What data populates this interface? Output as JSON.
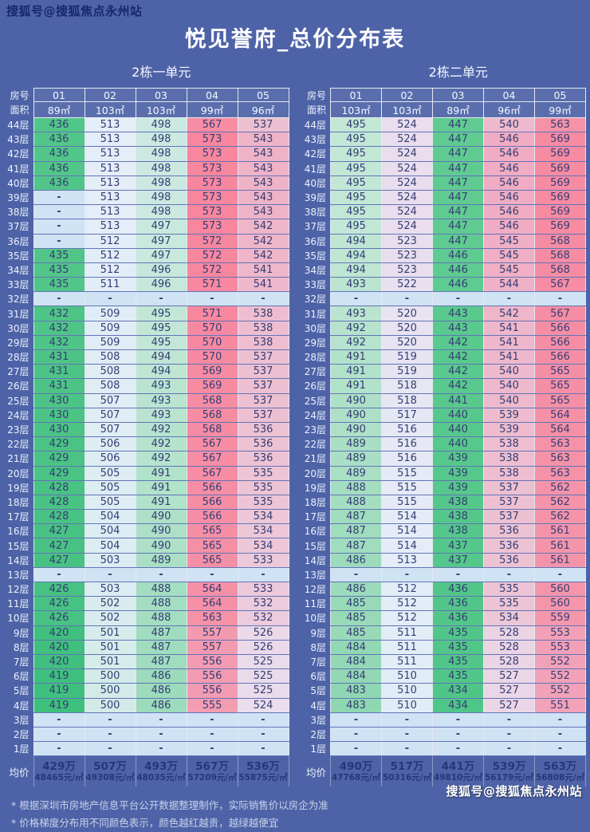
{
  "watermark_top": "搜狐号@搜狐焦点永州站",
  "watermark_bottom": "搜狐号@搜狐焦点永州站",
  "title": "悦见誉府_总价分布表",
  "labels": {
    "room_header": "房号",
    "area_header": "面积",
    "avg_header": "均价",
    "dash_display": "-"
  },
  "footnotes": [
    "* 根据深圳市房地产信息平台公开数据整理制作，实际销售价以房企为准",
    "* 价格梯度分布用不同颜色表示，颜色越红越贵，越绿越便宜"
  ],
  "colors": {
    "background": "#4e63a7",
    "cell_text": "#353e74",
    "header_text": "#f4f7ff",
    "avg_text": "#273678",
    "dash_bg": "#cfe3f5",
    "watermark_top": "#18276c",
    "watermark_bottom": "#ffffff",
    "green_min": "#3fbf7d",
    "red_max": "#f7869e"
  },
  "colormap_anchors": [
    [
      419,
      "#3fbf7d"
    ],
    [
      447,
      "#5fcb91"
    ],
    [
      483,
      "#8fd7b2"
    ],
    [
      495,
      "#c2e7d6"
    ],
    [
      503,
      "#dbedf2"
    ],
    [
      513,
      "#e4edf8"
    ],
    [
      524,
      "#eadded"
    ],
    [
      536,
      "#edc2d3"
    ],
    [
      548,
      "#f1a8bf"
    ],
    [
      560,
      "#f495ab"
    ],
    [
      573,
      "#f7869e"
    ]
  ],
  "floors": [
    "44层",
    "43层",
    "42层",
    "41层",
    "40层",
    "39层",
    "38层",
    "37层",
    "36层",
    "35层",
    "34层",
    "33层",
    "32层",
    "31层",
    "30层",
    "29层",
    "28层",
    "27层",
    "26层",
    "25层",
    "24层",
    "23层",
    "22层",
    "21层",
    "20层",
    "19层",
    "18层",
    "17层",
    "16层",
    "15层",
    "14层",
    "13层",
    "12层",
    "11层",
    "10层",
    "9层",
    "8层",
    "7层",
    "6层",
    "5层",
    "4层",
    "3层",
    "2层",
    "1层"
  ],
  "chart_data": [
    {
      "type": "heatmap",
      "title": "2栋一单元",
      "columns": [
        "01",
        "02",
        "03",
        "04",
        "05"
      ],
      "areas": [
        "89㎡",
        "103㎡",
        "103㎡",
        "99㎡",
        "96㎡"
      ],
      "values": [
        [
          436,
          513,
          498,
          567,
          537
        ],
        [
          436,
          513,
          498,
          573,
          543
        ],
        [
          436,
          513,
          498,
          573,
          543
        ],
        [
          436,
          513,
          498,
          573,
          543
        ],
        [
          436,
          513,
          498,
          573,
          543
        ],
        [
          null,
          513,
          498,
          573,
          543
        ],
        [
          null,
          513,
          498,
          573,
          543
        ],
        [
          null,
          513,
          497,
          573,
          542
        ],
        [
          null,
          512,
          497,
          572,
          542
        ],
        [
          435,
          512,
          497,
          572,
          542
        ],
        [
          435,
          512,
          496,
          572,
          541
        ],
        [
          435,
          511,
          496,
          571,
          541
        ],
        [
          null,
          null,
          null,
          null,
          null
        ],
        [
          432,
          509,
          495,
          571,
          538
        ],
        [
          432,
          509,
          495,
          570,
          538
        ],
        [
          432,
          509,
          495,
          570,
          538
        ],
        [
          431,
          508,
          494,
          570,
          537
        ],
        [
          431,
          508,
          494,
          569,
          537
        ],
        [
          431,
          508,
          493,
          569,
          537
        ],
        [
          430,
          507,
          493,
          568,
          537
        ],
        [
          430,
          507,
          493,
          568,
          537
        ],
        [
          430,
          507,
          492,
          568,
          536
        ],
        [
          429,
          506,
          492,
          567,
          536
        ],
        [
          429,
          506,
          492,
          567,
          536
        ],
        [
          429,
          505,
          491,
          567,
          535
        ],
        [
          428,
          505,
          491,
          566,
          535
        ],
        [
          428,
          505,
          491,
          566,
          535
        ],
        [
          428,
          504,
          490,
          566,
          534
        ],
        [
          427,
          504,
          490,
          565,
          534
        ],
        [
          427,
          504,
          490,
          565,
          534
        ],
        [
          427,
          503,
          489,
          565,
          533
        ],
        [
          null,
          null,
          null,
          null,
          null
        ],
        [
          426,
          503,
          488,
          564,
          533
        ],
        [
          426,
          502,
          488,
          564,
          532
        ],
        [
          426,
          502,
          488,
          563,
          532
        ],
        [
          420,
          501,
          487,
          557,
          526
        ],
        [
          420,
          501,
          487,
          557,
          526
        ],
        [
          420,
          501,
          487,
          556,
          525
        ],
        [
          419,
          500,
          486,
          556,
          525
        ],
        [
          419,
          500,
          486,
          556,
          525
        ],
        [
          419,
          500,
          486,
          555,
          524
        ],
        [
          null,
          null,
          null,
          null,
          null
        ],
        [
          null,
          null,
          null,
          null,
          null
        ],
        [
          null,
          null,
          null,
          null,
          null
        ]
      ],
      "avg_price_wan": [
        "429万",
        "507万",
        "493万",
        "567万",
        "536万"
      ],
      "avg_price_sqm": [
        "48465元/㎡",
        "49308元/㎡",
        "48035元/㎡",
        "57209元/㎡",
        "55875元/㎡"
      ]
    },
    {
      "type": "heatmap",
      "title": "2栋二单元",
      "columns": [
        "01",
        "02",
        "03",
        "04",
        "05"
      ],
      "areas": [
        "103㎡",
        "103㎡",
        "89㎡",
        "96㎡",
        "99㎡"
      ],
      "values": [
        [
          495,
          524,
          447,
          540,
          563
        ],
        [
          495,
          524,
          447,
          546,
          569
        ],
        [
          495,
          524,
          447,
          546,
          569
        ],
        [
          495,
          524,
          447,
          546,
          569
        ],
        [
          495,
          524,
          447,
          546,
          569
        ],
        [
          495,
          524,
          447,
          546,
          569
        ],
        [
          495,
          524,
          447,
          546,
          569
        ],
        [
          495,
          524,
          447,
          546,
          569
        ],
        [
          494,
          523,
          447,
          545,
          568
        ],
        [
          494,
          523,
          446,
          545,
          568
        ],
        [
          494,
          523,
          446,
          545,
          568
        ],
        [
          493,
          522,
          446,
          544,
          567
        ],
        [
          null,
          null,
          null,
          null,
          null
        ],
        [
          493,
          520,
          443,
          542,
          567
        ],
        [
          492,
          520,
          443,
          541,
          566
        ],
        [
          492,
          520,
          442,
          541,
          566
        ],
        [
          491,
          519,
          442,
          541,
          566
        ],
        [
          491,
          519,
          442,
          540,
          565
        ],
        [
          491,
          518,
          442,
          540,
          565
        ],
        [
          490,
          518,
          441,
          540,
          565
        ],
        [
          490,
          517,
          440,
          539,
          564
        ],
        [
          490,
          516,
          440,
          539,
          564
        ],
        [
          489,
          516,
          440,
          538,
          563
        ],
        [
          489,
          516,
          439,
          538,
          563
        ],
        [
          489,
          515,
          439,
          538,
          563
        ],
        [
          488,
          515,
          439,
          537,
          562
        ],
        [
          488,
          515,
          438,
          537,
          562
        ],
        [
          487,
          514,
          438,
          537,
          562
        ],
        [
          487,
          514,
          438,
          536,
          561
        ],
        [
          487,
          514,
          437,
          536,
          561
        ],
        [
          486,
          513,
          437,
          536,
          561
        ],
        [
          null,
          null,
          null,
          null,
          null
        ],
        [
          486,
          512,
          436,
          535,
          560
        ],
        [
          485,
          512,
          436,
          535,
          560
        ],
        [
          485,
          512,
          436,
          534,
          559
        ],
        [
          485,
          511,
          435,
          528,
          553
        ],
        [
          484,
          511,
          435,
          528,
          553
        ],
        [
          484,
          511,
          435,
          528,
          552
        ],
        [
          484,
          510,
          435,
          527,
          552
        ],
        [
          483,
          510,
          434,
          527,
          552
        ],
        [
          483,
          510,
          434,
          527,
          551
        ],
        [
          null,
          null,
          null,
          null,
          null
        ],
        [
          null,
          null,
          null,
          null,
          null
        ],
        [
          null,
          null,
          null,
          null,
          null
        ]
      ],
      "avg_price_wan": [
        "490万",
        "517万",
        "441万",
        "539万",
        "563万"
      ],
      "avg_price_sqm": [
        "47768元/㎡",
        "50316元/㎡",
        "49810元/㎡",
        "56179元/㎡",
        "56808元/㎡"
      ]
    }
  ]
}
